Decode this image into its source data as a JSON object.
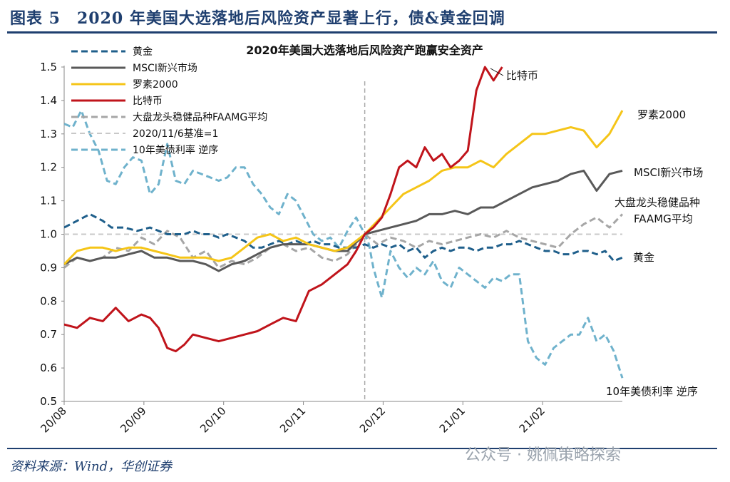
{
  "figure": {
    "title": "图表 5　2020 年美国大选落地后风险资产显著上行，债&黄金回调",
    "source": "资料来源：Wind，华创证券",
    "watermark": "公众号 · 姚佩策略探索"
  },
  "chart_data": {
    "type": "line",
    "title": "2020年美国大选落地后风险资产跑赢安全资产",
    "x_ticks": [
      "20/08",
      "20/09",
      "20/10",
      "20/11",
      "20/12",
      "21/01",
      "21/02"
    ],
    "xlim": [
      0,
      130
    ],
    "ylim": [
      0.5,
      1.5
    ],
    "y_ticks": [
      "0.5",
      "0.6",
      "0.7",
      "0.8",
      "0.9",
      "1.0",
      "1.1",
      "1.2",
      "1.3",
      "1.4",
      "1.5"
    ],
    "baseline_value": 1.0,
    "vline_x": 70,
    "legend_placement": "top-left",
    "grid": false,
    "series": [
      {
        "name": "黄金",
        "label": "黄金",
        "color": "#1f5f8b",
        "style": "dash",
        "width": 3,
        "x": [
          0,
          3,
          6,
          9,
          11,
          14,
          17,
          20,
          22,
          24,
          26,
          28,
          30,
          32,
          34,
          36,
          38,
          40,
          42,
          44,
          46,
          48,
          50,
          52,
          54,
          56,
          58,
          60,
          62,
          64,
          66,
          68,
          70,
          72,
          74,
          76,
          78,
          80,
          82,
          84,
          86,
          88,
          90,
          92,
          94,
          96,
          98,
          100,
          102,
          104,
          106,
          108,
          110,
          112,
          114,
          116,
          118,
          120,
          122,
          124,
          126,
          128,
          130
        ],
        "y": [
          1.02,
          1.04,
          1.06,
          1.04,
          1.02,
          1.02,
          1.01,
          1.02,
          1.01,
          1.0,
          1.0,
          1.0,
          1.01,
          1.0,
          1.0,
          0.99,
          1.0,
          0.99,
          0.98,
          0.96,
          0.96,
          0.97,
          0.98,
          0.97,
          0.98,
          0.97,
          0.98,
          0.97,
          0.97,
          0.96,
          0.96,
          0.96,
          0.97,
          0.96,
          0.97,
          0.96,
          0.97,
          0.95,
          0.96,
          0.93,
          0.95,
          0.96,
          0.95,
          0.96,
          0.96,
          0.95,
          0.96,
          0.96,
          0.97,
          0.97,
          0.98,
          0.97,
          0.96,
          0.95,
          0.95,
          0.94,
          0.94,
          0.95,
          0.95,
          0.94,
          0.95,
          0.92,
          0.93
        ]
      },
      {
        "name": "MSCI新兴市场",
        "label": "MSCI新兴市场",
        "color": "#595959",
        "style": "solid",
        "width": 3,
        "x": [
          0,
          3,
          6,
          9,
          12,
          15,
          18,
          21,
          24,
          27,
          30,
          33,
          36,
          39,
          42,
          45,
          48,
          51,
          54,
          57,
          60,
          63,
          66,
          70,
          73,
          76,
          79,
          82,
          85,
          88,
          91,
          94,
          97,
          100,
          103,
          106,
          109,
          112,
          115,
          118,
          121,
          124,
          127,
          130
        ],
        "y": [
          0.91,
          0.93,
          0.92,
          0.93,
          0.93,
          0.94,
          0.95,
          0.93,
          0.93,
          0.92,
          0.92,
          0.91,
          0.89,
          0.91,
          0.92,
          0.94,
          0.96,
          0.97,
          0.97,
          0.97,
          0.96,
          0.95,
          0.95,
          1.0,
          1.01,
          1.02,
          1.03,
          1.04,
          1.06,
          1.06,
          1.07,
          1.06,
          1.08,
          1.08,
          1.1,
          1.12,
          1.14,
          1.15,
          1.16,
          1.18,
          1.19,
          1.13,
          1.18,
          1.19
        ]
      },
      {
        "name": "罗素2000",
        "label": "罗素2000",
        "color": "#f5c518",
        "style": "solid",
        "width": 3,
        "x": [
          0,
          3,
          6,
          9,
          12,
          15,
          18,
          21,
          24,
          27,
          30,
          33,
          36,
          39,
          42,
          45,
          48,
          51,
          54,
          57,
          60,
          63,
          66,
          70,
          73,
          76,
          79,
          82,
          85,
          88,
          91,
          94,
          97,
          100,
          103,
          106,
          109,
          112,
          115,
          118,
          121,
          124,
          127,
          130
        ],
        "y": [
          0.91,
          0.95,
          0.96,
          0.96,
          0.95,
          0.96,
          0.96,
          0.95,
          0.94,
          0.93,
          0.93,
          0.93,
          0.92,
          0.93,
          0.96,
          0.99,
          1.0,
          0.98,
          0.99,
          0.97,
          0.96,
          0.95,
          0.96,
          1.0,
          1.04,
          1.08,
          1.12,
          1.14,
          1.16,
          1.19,
          1.2,
          1.2,
          1.22,
          1.2,
          1.24,
          1.27,
          1.3,
          1.3,
          1.31,
          1.32,
          1.31,
          1.26,
          1.3,
          1.37
        ]
      },
      {
        "name": "比特币",
        "label": "比特币",
        "color": "#c0141b",
        "style": "solid",
        "width": 3,
        "x": [
          0,
          3,
          6,
          9,
          12,
          15,
          18,
          20,
          22,
          24,
          26,
          28,
          30,
          33,
          36,
          39,
          42,
          45,
          48,
          51,
          54,
          57,
          60,
          63,
          66,
          68,
          70,
          72,
          74,
          76,
          78,
          80,
          82,
          84,
          86,
          88,
          90,
          92,
          94,
          96,
          98,
          100,
          102
        ],
        "y": [
          0.73,
          0.72,
          0.75,
          0.74,
          0.78,
          0.74,
          0.76,
          0.75,
          0.72,
          0.66,
          0.65,
          0.67,
          0.7,
          0.69,
          0.68,
          0.69,
          0.7,
          0.71,
          0.73,
          0.75,
          0.74,
          0.83,
          0.85,
          0.88,
          0.91,
          0.95,
          1.0,
          1.02,
          1.05,
          1.12,
          1.2,
          1.22,
          1.2,
          1.26,
          1.22,
          1.24,
          1.2,
          1.22,
          1.25,
          1.43,
          1.5,
          1.46,
          1.5
        ]
      },
      {
        "name": "大盘龙头稳健品种FAAMG平均",
        "label": "大盘龙头稳健品种\nFAAMG平均",
        "color": "#a6a6a6",
        "style": "dash",
        "width": 3,
        "x": [
          0,
          3,
          6,
          9,
          12,
          15,
          18,
          21,
          24,
          27,
          30,
          33,
          36,
          39,
          42,
          45,
          48,
          51,
          54,
          57,
          60,
          63,
          66,
          70,
          73,
          76,
          79,
          82,
          85,
          88,
          91,
          94,
          97,
          100,
          103,
          106,
          109,
          112,
          115,
          118,
          121,
          124,
          127,
          130
        ],
        "y": [
          0.9,
          0.93,
          0.92,
          0.93,
          0.96,
          0.95,
          0.99,
          0.97,
          1.01,
          0.99,
          0.93,
          0.95,
          0.9,
          0.92,
          0.91,
          0.93,
          0.96,
          0.97,
          0.95,
          0.96,
          0.93,
          0.92,
          0.94,
          1.0,
          0.97,
          0.99,
          0.98,
          0.96,
          0.98,
          0.97,
          0.98,
          0.99,
          1.0,
          0.99,
          1.01,
          0.99,
          0.98,
          0.97,
          0.96,
          1.0,
          1.03,
          1.05,
          1.02,
          1.06
        ]
      },
      {
        "name": "2020/11/6基准=1",
        "label": "",
        "color": "#c8c8c8",
        "style": "dash",
        "width": 2,
        "x": [
          0,
          130
        ],
        "y": [
          1.0,
          1.0
        ]
      },
      {
        "name": "10年美债利率 逆序",
        "label": "10年美债利率 逆序",
        "color": "#6fb2cc",
        "style": "dash",
        "width": 3,
        "x": [
          0,
          2,
          4,
          6,
          8,
          10,
          12,
          14,
          16,
          18,
          20,
          22,
          24,
          26,
          28,
          30,
          32,
          34,
          36,
          38,
          40,
          42,
          44,
          46,
          48,
          50,
          52,
          54,
          56,
          58,
          60,
          62,
          64,
          66,
          68,
          70,
          71,
          72,
          74,
          76,
          78,
          80,
          82,
          84,
          86,
          88,
          90,
          92,
          94,
          96,
          98,
          100,
          102,
          104,
          106,
          108,
          110,
          112,
          114,
          116,
          118,
          120,
          122,
          124,
          126,
          128,
          130
        ],
        "y": [
          1.33,
          1.32,
          1.37,
          1.3,
          1.25,
          1.16,
          1.15,
          1.2,
          1.23,
          1.22,
          1.12,
          1.15,
          1.27,
          1.16,
          1.15,
          1.19,
          1.18,
          1.17,
          1.16,
          1.17,
          1.2,
          1.2,
          1.15,
          1.12,
          1.08,
          1.06,
          1.12,
          1.1,
          1.05,
          1.0,
          0.98,
          0.99,
          0.96,
          1.01,
          1.05,
          1.0,
          0.97,
          0.9,
          0.81,
          0.95,
          0.9,
          0.87,
          0.9,
          0.88,
          0.92,
          0.86,
          0.84,
          0.9,
          0.88,
          0.86,
          0.84,
          0.87,
          0.86,
          0.88,
          0.88,
          0.68,
          0.63,
          0.61,
          0.66,
          0.68,
          0.7,
          0.7,
          0.75,
          0.68,
          0.7,
          0.65,
          0.57
        ]
      }
    ],
    "end_labels": [
      "比特币",
      "罗素2000",
      "MSCI新兴市场",
      "大盘龙头稳健品种",
      "FAAMG平均",
      "黄金",
      "10年美债利率 逆序"
    ]
  }
}
